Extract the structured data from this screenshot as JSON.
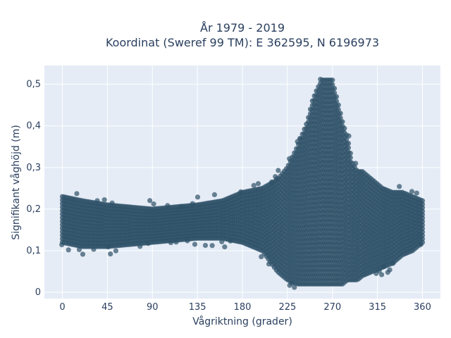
{
  "chart_data": {
    "type": "scatter",
    "title_line1": "År 1979 - 2019",
    "title_line2": "Koordinat (Sweref 99 TM): E 362595, N 6196973",
    "xlabel": "Vågriktning (grader)",
    "ylabel": "Signifikant våghöjd (m)",
    "xlim": [
      -18,
      378
    ],
    "ylim": [
      -0.015,
      0.545
    ],
    "x_ticks": [
      0,
      45,
      90,
      135,
      180,
      225,
      270,
      315,
      360
    ],
    "x_tick_labels": [
      "0",
      "45",
      "90",
      "135",
      "180",
      "225",
      "270",
      "315",
      "360"
    ],
    "y_ticks": [
      0,
      0.1,
      0.2,
      0.3,
      0.4,
      0.5
    ],
    "y_tick_labels": [
      "0",
      "0,1",
      "0,2",
      "0,3",
      "0,4",
      "0,5"
    ],
    "grid": true,
    "marker_color": "#2f5168",
    "envelope": {
      "x": [
        0,
        20,
        45,
        90,
        135,
        160,
        180,
        200,
        215,
        225,
        235,
        240,
        245,
        250,
        255,
        260,
        265,
        270,
        275,
        280,
        285,
        290,
        295,
        300,
        310,
        320,
        330,
        340,
        350,
        360
      ],
      "y_min": [
        0.12,
        0.11,
        0.11,
        0.12,
        0.13,
        0.13,
        0.12,
        0.1,
        0.05,
        0.03,
        0.02,
        0.02,
        0.02,
        0.02,
        0.02,
        0.02,
        0.02,
        0.02,
        0.02,
        0.02,
        0.03,
        0.03,
        0.03,
        0.04,
        0.05,
        0.06,
        0.07,
        0.09,
        0.1,
        0.12
      ],
      "y_max": [
        0.23,
        0.22,
        0.21,
        0.2,
        0.21,
        0.22,
        0.24,
        0.25,
        0.27,
        0.3,
        0.35,
        0.38,
        0.41,
        0.46,
        0.49,
        0.51,
        0.51,
        0.51,
        0.46,
        0.41,
        0.37,
        0.31,
        0.29,
        0.29,
        0.27,
        0.25,
        0.24,
        0.24,
        0.23,
        0.22
      ]
    }
  }
}
